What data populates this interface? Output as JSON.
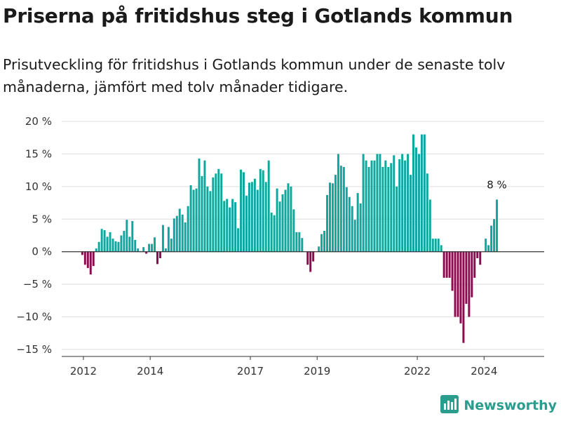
{
  "title": "Priserna på fritidshus steg i Gotlands kommun",
  "subtitle": "Prisutveckling för fritidshus i Gotlands kommun under de senaste tolv månaderna, jämfört med tolv månader tidigare.",
  "brand": {
    "name": "Newsworthy",
    "logo_icon": "bar-chart-icon"
  },
  "colors": {
    "positive": "#0ea79e",
    "negative": "#8c0a4e",
    "zero_line": "#333333",
    "grid": "#dddddd",
    "brand": "#2a9d8f"
  },
  "chart_data": {
    "type": "bar",
    "title": "Priserna på fritidshus steg i Gotlands kommun",
    "ylabel": "",
    "xlabel": "",
    "ylim": [
      -15,
      20
    ],
    "y_ticks": [
      20,
      15,
      10,
      5,
      0,
      -5,
      -10,
      -15
    ],
    "y_tick_labels": [
      "20 %",
      "15 %",
      "10 %",
      "5 %",
      "0 %",
      "−5 %",
      "−10 %",
      "−15 %"
    ],
    "x_ticks": [
      2012,
      2014,
      2017,
      2019,
      2022,
      2024
    ],
    "x_tick_labels": [
      "2012",
      "2014",
      "2017",
      "2019",
      "2022",
      "2024"
    ],
    "x_domain": [
      2011.35,
      2025.8
    ],
    "grid": true,
    "series": [
      {
        "start_year": 2011.55,
        "step_years": 0.0833333,
        "values": [
          0.0,
          0.0,
          0.0,
          0.0,
          0.0,
          -0.5,
          -2.0,
          -2.5,
          -3.5,
          -2.2,
          0.5,
          1.5,
          3.5,
          3.3,
          2.3,
          3.0,
          2.0,
          1.6,
          1.5,
          2.5,
          3.2,
          4.9,
          2.3,
          4.7,
          1.8,
          0.5,
          0.1,
          0.7,
          -0.3,
          1.2,
          1.2,
          2.2,
          -1.9,
          -1.0,
          4.1,
          0.5,
          3.8,
          2.0,
          5.1,
          5.5,
          6.6,
          5.7,
          4.5,
          7.0,
          10.2,
          9.5,
          9.7,
          14.3,
          11.6,
          14.0,
          10.0,
          9.3,
          11.4,
          12.0,
          12.7,
          12.0,
          7.8,
          8.1,
          6.8,
          8.1,
          7.6,
          3.6,
          12.6,
          12.2,
          8.6,
          10.6,
          10.7,
          11.2,
          9.5,
          12.7,
          12.5,
          10.7,
          14.0,
          6.0,
          5.6,
          9.7,
          7.7,
          8.8,
          9.5,
          10.5,
          10.0,
          6.5,
          3.0,
          3.0,
          2.1,
          0.0,
          -2.0,
          -3.1,
          -1.5,
          0.0,
          0.8,
          2.7,
          3.2,
          8.7,
          10.6,
          10.5,
          11.8,
          15.0,
          13.2,
          13.0,
          9.9,
          8.4,
          7.0,
          4.9,
          9.0,
          7.4,
          15.0,
          14.0,
          13.0,
          14.0,
          14.0,
          15.0,
          15.0,
          13.0,
          14.0,
          13.0,
          13.6,
          14.8,
          10.0,
          14.2,
          15.0,
          14.0,
          15.0,
          11.8,
          18.0,
          16.0,
          15.0,
          18.0,
          18.0,
          12.0,
          8.0,
          2.0,
          2.0,
          2.0,
          1.0,
          -4.0,
          -4.0,
          -4.0,
          -6.0,
          -10.0,
          -10.0,
          -11.0,
          -14.0,
          -8.0,
          -10.0,
          -7.0,
          -4.0,
          -1.0,
          -2.0,
          0.0,
          2.0,
          1.0,
          4.0,
          5.0,
          8.0
        ]
      }
    ],
    "annotations": [
      {
        "label": "8 %"
      }
    ]
  }
}
